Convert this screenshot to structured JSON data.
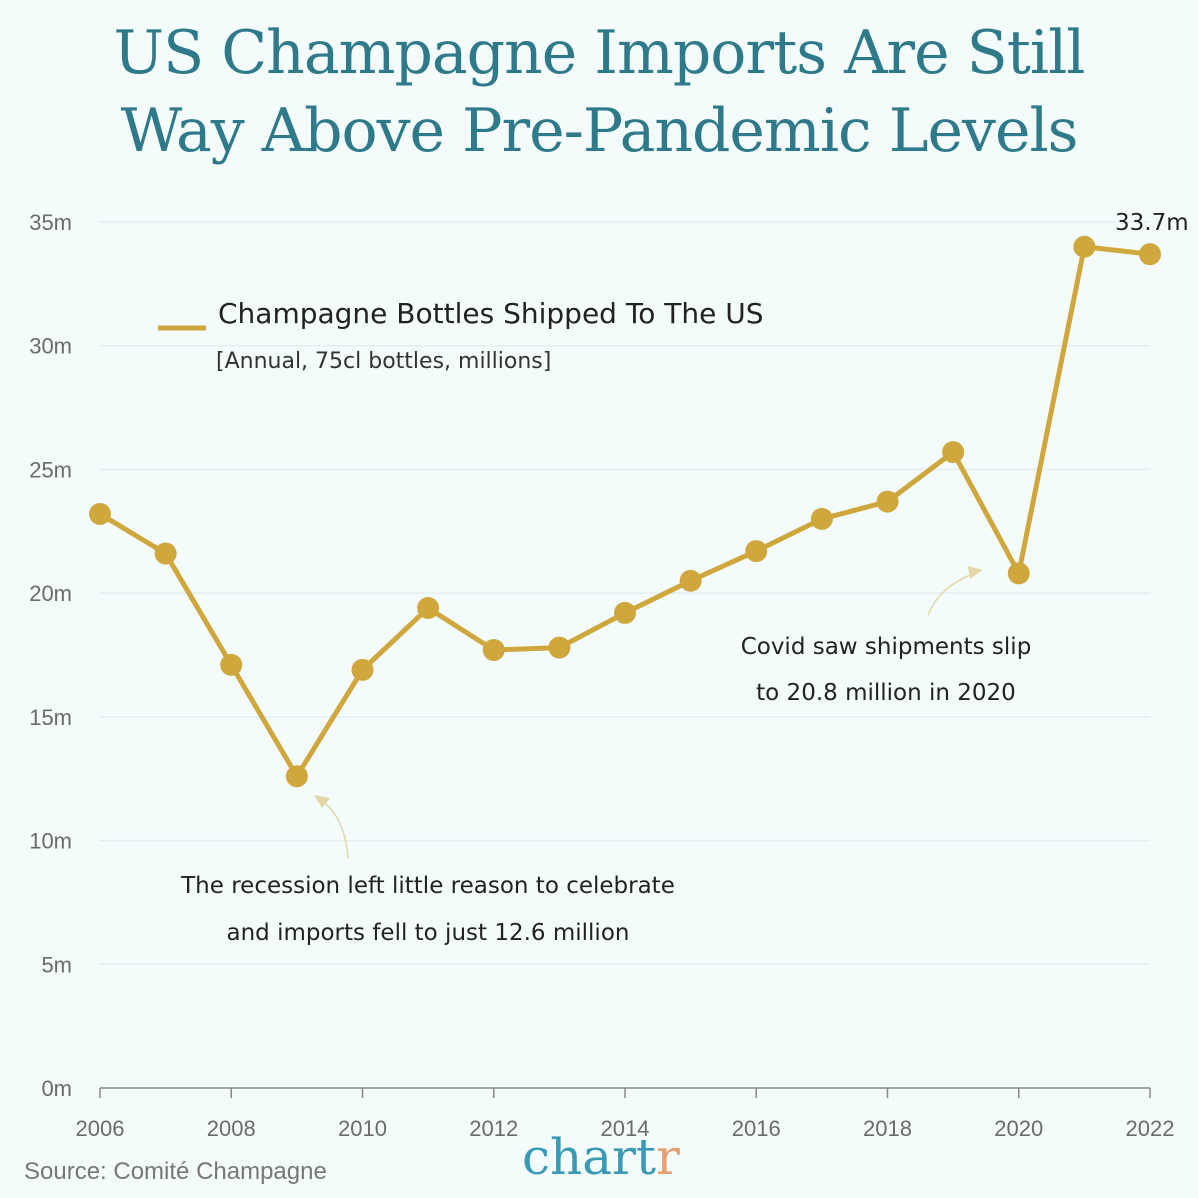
{
  "title_line1": "US Champagne Imports Are Still",
  "title_line2": "Way Above Pre-Pandemic Levels",
  "source": "Source: Comité Champagne",
  "logo": {
    "main": "chart",
    "accent": "r"
  },
  "colors": {
    "line": "#cfa73d",
    "title": "#2f7a8a",
    "logo": "#3a9ab5",
    "logo_accent": "#e8a070",
    "background": "#f3fbfb"
  },
  "chart_data": {
    "type": "line",
    "x": [
      2006,
      2007,
      2008,
      2009,
      2010,
      2011,
      2012,
      2013,
      2014,
      2015,
      2016,
      2017,
      2018,
      2019,
      2020,
      2021,
      2022
    ],
    "series": [
      {
        "name": "Champagne Bottles Shipped To The US",
        "values": [
          23.2,
          21.6,
          17.1,
          12.6,
          16.9,
          19.4,
          17.7,
          17.8,
          19.2,
          20.5,
          21.7,
          23.0,
          23.7,
          25.7,
          20.8,
          34.0,
          33.7
        ]
      }
    ],
    "legend_title": "Champagne Bottles Shipped To The US",
    "legend_subtitle": "[Annual, 75cl bottles, millions]",
    "legend_placement": "top-left",
    "xticks": [
      "2006",
      "2008",
      "2010",
      "2012",
      "2014",
      "2016",
      "2018",
      "2020",
      "2022"
    ],
    "yticks": [
      "0m",
      "5m",
      "10m",
      "15m",
      "20m",
      "25m",
      "30m",
      "35m"
    ],
    "ylim": [
      0,
      35
    ],
    "xlim": [
      2006,
      2022
    ],
    "grid": true,
    "end_label": "33.7m",
    "annotations": [
      {
        "lines": [
          "The recession left little reason to celebrate",
          "and imports fell to just 12.6 million"
        ],
        "year": 2009
      },
      {
        "lines": [
          "Covid saw shipments slip",
          "to 20.8 million in 2020"
        ],
        "year": 2020
      }
    ]
  }
}
